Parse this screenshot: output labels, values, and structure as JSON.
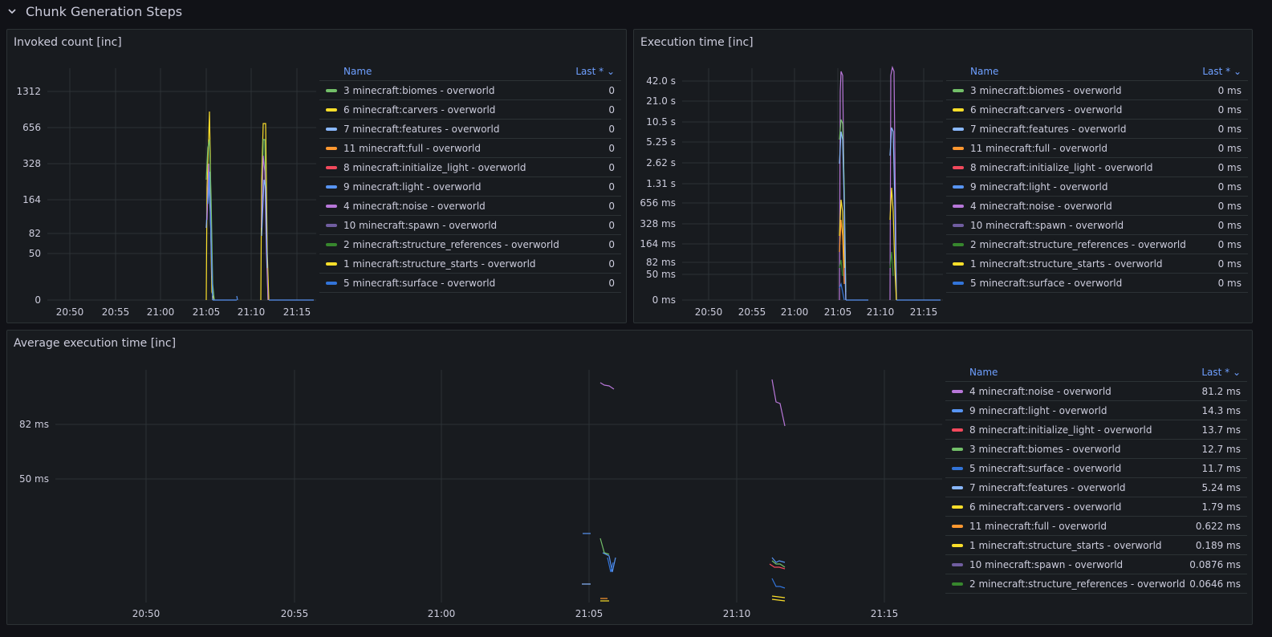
{
  "row": {
    "title": "Chunk Generation Steps"
  },
  "panels": {
    "invoked": {
      "title": "Invoked count [inc]",
      "legend_header": {
        "name": "Name",
        "last": "Last * ⌄"
      },
      "legend": [
        {
          "label": "3 minecraft:biomes - overworld",
          "value": "0",
          "color": "#73bf69"
        },
        {
          "label": "6 minecraft:carvers - overworld",
          "value": "0",
          "color": "#fade2a"
        },
        {
          "label": "7 minecraft:features - overworld",
          "value": "0",
          "color": "#8ab8ff"
        },
        {
          "label": "11 minecraft:full - overworld",
          "value": "0",
          "color": "#ff9830"
        },
        {
          "label": "8 minecraft:initialize_light - overworld",
          "value": "0",
          "color": "#f2495c"
        },
        {
          "label": "9 minecraft:light - overworld",
          "value": "0",
          "color": "#5794f2"
        },
        {
          "label": "4 minecraft:noise - overworld",
          "value": "0",
          "color": "#b877d9"
        },
        {
          "label": "10 minecraft:spawn - overworld",
          "value": "0",
          "color": "#705da0"
        },
        {
          "label": "2 minecraft:structure_references - overworld",
          "value": "0",
          "color": "#37872d"
        },
        {
          "label": "1 minecraft:structure_starts - overworld",
          "value": "0",
          "color": "#fade2a"
        },
        {
          "label": "5 minecraft:surface - overworld",
          "value": "0",
          "color": "#3274d9"
        }
      ],
      "chart_data": {
        "type": "line",
        "x_ticks": [
          "20:50",
          "20:55",
          "21:00",
          "21:05",
          "21:10",
          "21:15"
        ],
        "y_ticks": [
          "1312",
          "656",
          "328",
          "164",
          "82",
          "50",
          "0"
        ],
        "y_scale": "log"
      }
    },
    "exec": {
      "title": "Execution time [inc]",
      "legend_header": {
        "name": "Name",
        "last": "Last * ⌄"
      },
      "legend": [
        {
          "label": "3 minecraft:biomes - overworld",
          "value": "0 ms",
          "color": "#73bf69"
        },
        {
          "label": "6 minecraft:carvers - overworld",
          "value": "0 ms",
          "color": "#fade2a"
        },
        {
          "label": "7 minecraft:features - overworld",
          "value": "0 ms",
          "color": "#8ab8ff"
        },
        {
          "label": "11 minecraft:full - overworld",
          "value": "0 ms",
          "color": "#ff9830"
        },
        {
          "label": "8 minecraft:initialize_light - overworld",
          "value": "0 ms",
          "color": "#f2495c"
        },
        {
          "label": "9 minecraft:light - overworld",
          "value": "0 ms",
          "color": "#5794f2"
        },
        {
          "label": "4 minecraft:noise - overworld",
          "value": "0 ms",
          "color": "#b877d9"
        },
        {
          "label": "10 minecraft:spawn - overworld",
          "value": "0 ms",
          "color": "#705da0"
        },
        {
          "label": "2 minecraft:structure_references - overworld",
          "value": "0 ms",
          "color": "#37872d"
        },
        {
          "label": "1 minecraft:structure_starts - overworld",
          "value": "0 ms",
          "color": "#fade2a"
        },
        {
          "label": "5 minecraft:surface - overworld",
          "value": "0 ms",
          "color": "#3274d9"
        }
      ],
      "chart_data": {
        "type": "line",
        "x_ticks": [
          "20:50",
          "20:55",
          "21:00",
          "21:05",
          "21:10",
          "21:15"
        ],
        "y_ticks": [
          "42.0 s",
          "21.0 s",
          "10.5 s",
          "5.25 s",
          "2.62 s",
          "1.31 s",
          "656 ms",
          "328 ms",
          "164 ms",
          "82 ms",
          "50 ms",
          "0 ms"
        ],
        "y_scale": "log"
      }
    },
    "avg": {
      "title": "Average execution time [inc]",
      "legend_header": {
        "name": "Name",
        "last": "Last * ⌄"
      },
      "legend": [
        {
          "label": "4 minecraft:noise - overworld",
          "value": "81.2 ms",
          "color": "#b877d9"
        },
        {
          "label": "9 minecraft:light - overworld",
          "value": "14.3 ms",
          "color": "#5794f2"
        },
        {
          "label": "8 minecraft:initialize_light - overworld",
          "value": "13.7 ms",
          "color": "#f2495c"
        },
        {
          "label": "3 minecraft:biomes - overworld",
          "value": "12.7 ms",
          "color": "#73bf69"
        },
        {
          "label": "5 minecraft:surface - overworld",
          "value": "11.7 ms",
          "color": "#3274d9"
        },
        {
          "label": "7 minecraft:features - overworld",
          "value": "5.24 ms",
          "color": "#8ab8ff"
        },
        {
          "label": "6 minecraft:carvers - overworld",
          "value": "1.79 ms",
          "color": "#fade2a"
        },
        {
          "label": "11 minecraft:full - overworld",
          "value": "0.622 ms",
          "color": "#ff9830"
        },
        {
          "label": "1 minecraft:structure_starts - overworld",
          "value": "0.189 ms",
          "color": "#fade2a"
        },
        {
          "label": "10 minecraft:spawn - overworld",
          "value": "0.0876 ms",
          "color": "#705da0"
        },
        {
          "label": "2 minecraft:structure_references - overworld",
          "value": "0.0646 ms",
          "color": "#37872d"
        }
      ],
      "chart_data": {
        "type": "line",
        "x_ticks": [
          "20:50",
          "20:55",
          "21:00",
          "21:05",
          "21:10",
          "21:15"
        ],
        "y_ticks": [
          "82 ms",
          "50 ms"
        ],
        "y_scale": "log"
      }
    }
  }
}
